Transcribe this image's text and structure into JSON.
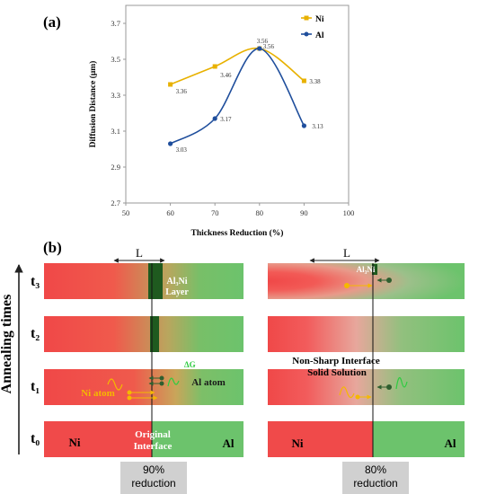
{
  "panel_a": {
    "label": "(a)",
    "chart_data": {
      "type": "line",
      "x": [
        60,
        70,
        80,
        90
      ],
      "series": [
        {
          "name": "Ni",
          "color": "#e8b100",
          "values": [
            3.36,
            3.46,
            3.56,
            3.38
          ],
          "labels": [
            "3.36",
            "3.46",
            "3.56",
            "3.38"
          ]
        },
        {
          "name": "Al",
          "color": "#1f4e9c",
          "values": [
            3.03,
            3.17,
            3.56,
            3.13
          ],
          "labels": [
            "3.03",
            "3.17",
            "3.56",
            "3.13"
          ]
        }
      ],
      "xlabel": "Thickness Reduction (%)",
      "ylabel": "Diffusion Distance (μm)",
      "xlim": [
        50,
        100
      ],
      "ylim": [
        2.7,
        3.8
      ],
      "xticks": [
        "50",
        "60",
        "70",
        "80",
        "90",
        "100"
      ],
      "yticks": [
        "2.7",
        "2.9",
        "3.1",
        "3.3",
        "3.5",
        "3.7"
      ],
      "grid": false,
      "legend_position": "top-right"
    }
  },
  "panel_b": {
    "label": "(b)",
    "y_axis_label": "Annealing times",
    "row_labels": [
      "t₃",
      "t₂",
      "t₁",
      "t₀"
    ],
    "left_L": "L",
    "right_L": "L",
    "left_layer_label": "Al₃Ni\nLayer",
    "left_layer_line1": "Al₃Ni",
    "left_layer_line2": "Layer",
    "right_layer_label": "Al₃Ni",
    "delta_g": "ΔG",
    "ni_atom": "Ni atom",
    "al_atom": "Al atom",
    "non_sharp_line1": "Non-Sharp Interface",
    "non_sharp_line2": "Solid Solution",
    "left_ni": "Ni",
    "left_al": "Al",
    "right_ni": "Ni",
    "right_al": "Al",
    "original_line1": "Original",
    "original_line2": "Interface",
    "left_box_line1": "90%",
    "left_box_line2": "reduction",
    "right_box_line1": "80%",
    "right_box_line2": "reduction",
    "colors": {
      "ni_red": "#f04a4a",
      "al_green": "#6cc36c",
      "layer_dark": "#1f5a1f",
      "atom_yellow": "#f5b800",
      "atom_dark": "#2f5f2f"
    }
  }
}
